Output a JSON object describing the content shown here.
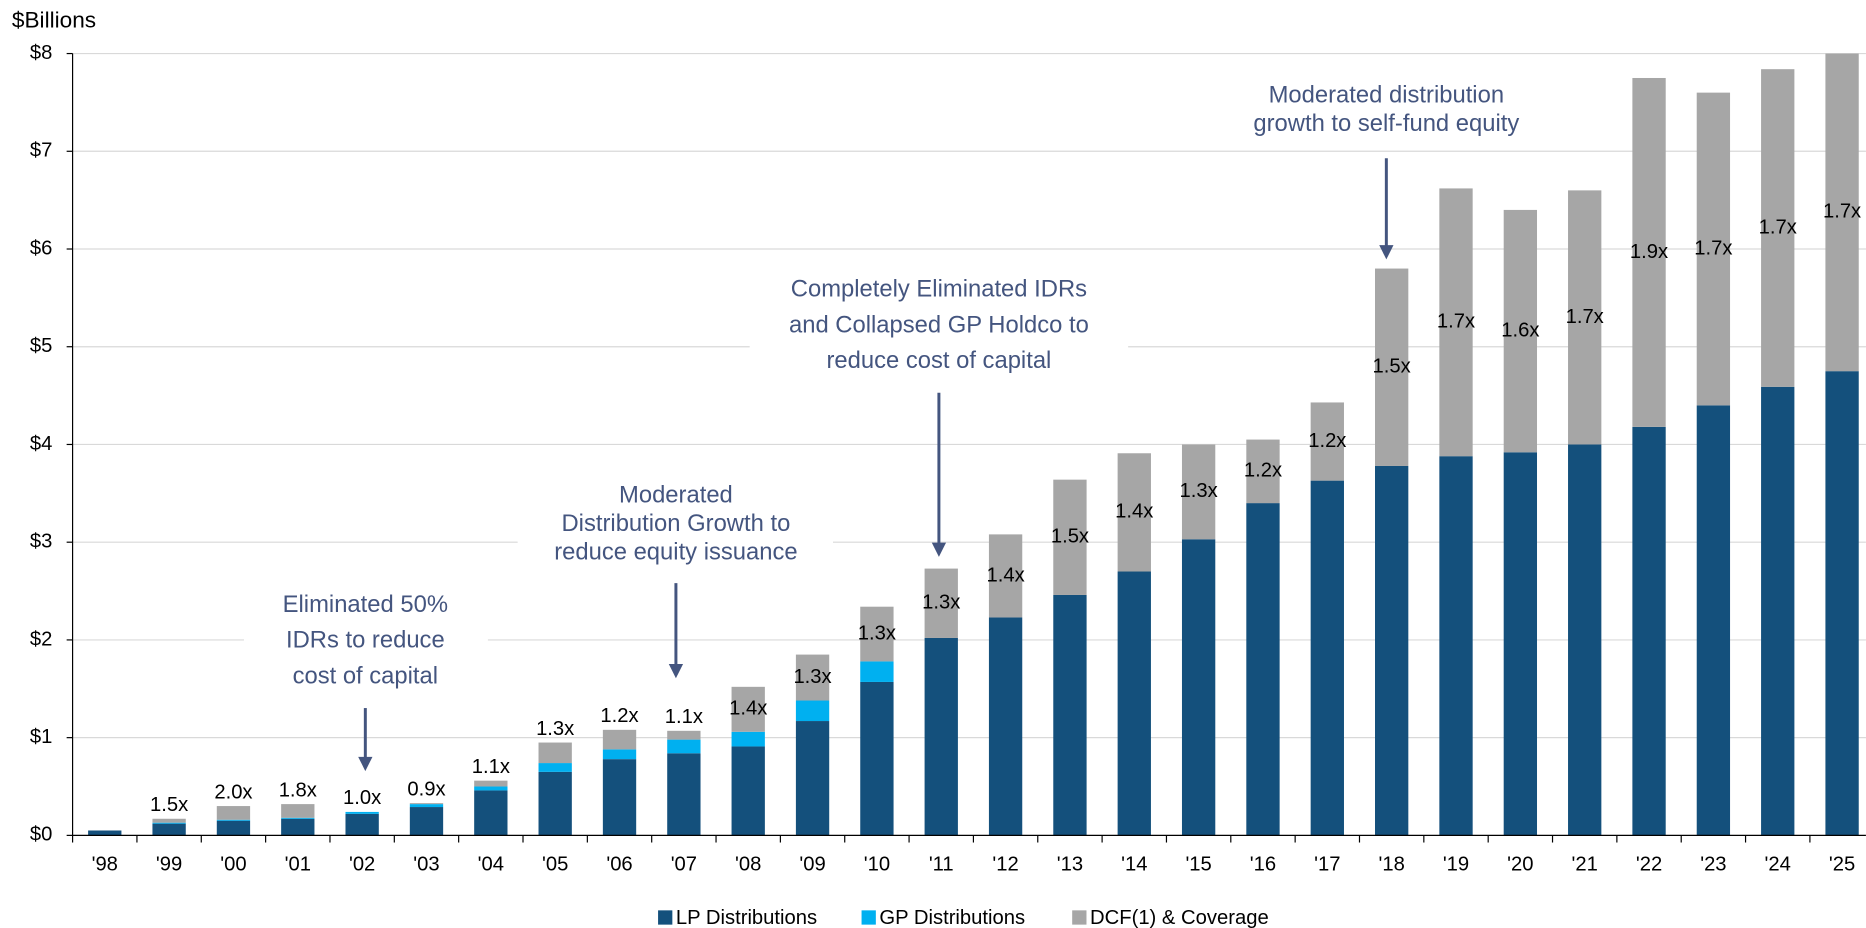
{
  "chart_data": {
    "type": "stacked_bar",
    "y_axis_label": "$Billions",
    "categories": [
      "'98",
      "'99",
      "'00",
      "'01",
      "'02",
      "'03",
      "'04",
      "'05",
      "'06",
      "'07",
      "'08",
      "'09",
      "'10",
      "'11",
      "'12",
      "'13",
      "'14",
      "'15",
      "'16",
      "'17",
      "'18",
      "'19",
      "'20",
      "'21",
      "'22",
      "'23",
      "'24",
      "'25"
    ],
    "series": [
      {
        "name": "LP Distributions",
        "color": "#14507c",
        "values": [
          0.05,
          0.12,
          0.15,
          0.17,
          0.22,
          0.29,
          0.46,
          0.65,
          0.78,
          0.84,
          0.91,
          1.17,
          1.57,
          2.02,
          2.23,
          2.46,
          2.7,
          3.03,
          3.4,
          3.63,
          3.78,
          3.88,
          3.92,
          4.0,
          4.18,
          4.4,
          4.59,
          4.75
        ]
      },
      {
        "name": "GP Distributions",
        "color": "#00b0f0",
        "values": [
          0,
          0.01,
          0.01,
          0.01,
          0.02,
          0.03,
          0.04,
          0.09,
          0.1,
          0.14,
          0.15,
          0.21,
          0.21,
          0,
          0,
          0,
          0,
          0,
          0,
          0,
          0,
          0,
          0,
          0,
          0,
          0,
          0,
          0
        ]
      },
      {
        "name": "DCF(1) & Coverage",
        "color": "#a6a6a6",
        "values": [
          0,
          0.04,
          0.14,
          0.14,
          0,
          0.01,
          0.06,
          0.21,
          0.2,
          0.09,
          0.46,
          0.47,
          0.56,
          0.71,
          0.85,
          1.18,
          1.21,
          0.97,
          0.65,
          0.8,
          2.02,
          2.74,
          2.48,
          2.6,
          3.57,
          3.2,
          3.25,
          3.25
        ]
      }
    ],
    "coverage_labels": [
      null,
      "1.5x",
      "2.0x",
      "1.8x",
      "1.0x",
      "0.9x",
      "1.1x",
      "1.3x",
      "1.2x",
      "1.1x",
      "1.4x",
      "1.3x",
      "1.3x",
      "1.3x",
      "1.4x",
      "1.5x",
      "1.4x",
      "1.3x",
      "1.2x",
      "1.2x",
      "1.5x",
      "1.7x",
      "1.6x",
      "1.7x",
      "1.9x",
      "1.7x",
      "1.7x",
      "1.7x"
    ],
    "ylim": [
      0,
      8
    ],
    "yticks": [
      {
        "value": 0,
        "label": "$0"
      },
      {
        "value": 1,
        "label": "$1"
      },
      {
        "value": 2,
        "label": "$2"
      },
      {
        "value": 3,
        "label": "$3"
      },
      {
        "value": 4,
        "label": "$4"
      },
      {
        "value": 5,
        "label": "$5"
      },
      {
        "value": 6,
        "label": "$6"
      },
      {
        "value": 7,
        "label": "$7"
      },
      {
        "value": 8,
        "label": "$8"
      }
    ],
    "grid": true,
    "legend": "bottom",
    "annotations": [
      {
        "lines": [
          "Eliminated 50%",
          "IDRs to reduce",
          "cost of capital"
        ]
      },
      {
        "lines": [
          "Moderated",
          "Distribution Growth to",
          "reduce equity issuance"
        ]
      },
      {
        "lines": [
          "Completely Eliminated IDRs",
          "and Collapsed GP Holdco to",
          "reduce cost of capital"
        ]
      },
      {
        "lines": [
          "Moderated distribution",
          "growth to self-fund equity"
        ]
      }
    ]
  }
}
